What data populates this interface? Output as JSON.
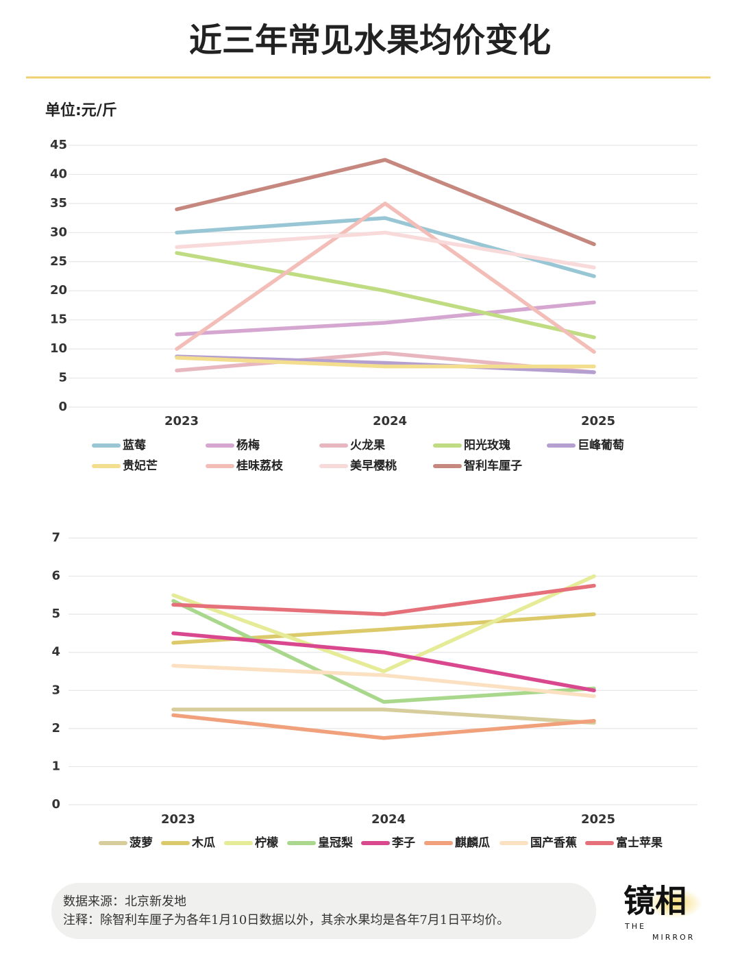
{
  "title": "近三年常见水果均价变化",
  "chart_data": [
    {
      "type": "line",
      "y_label": "单位:元/斤",
      "categories": [
        "2023",
        "2024",
        "2025"
      ],
      "ylim": [
        0,
        45
      ],
      "yticks": [
        0,
        5,
        10,
        15,
        20,
        25,
        30,
        35,
        40,
        45
      ],
      "grid": true,
      "series": [
        {
          "name": "蓝莓",
          "color": "#98c6d5",
          "values": [
            30,
            32.5,
            22.5
          ]
        },
        {
          "name": "杨梅",
          "color": "#d4a6d0",
          "values": [
            12.5,
            14.5,
            18
          ]
        },
        {
          "name": "火龙果",
          "color": "#e8b6bf",
          "values": [
            6.3,
            9.3,
            6
          ]
        },
        {
          "name": "阳光玫瑰",
          "color": "#bfdc82",
          "values": [
            26.5,
            20,
            12
          ]
        },
        {
          "name": "巨峰葡萄",
          "color": "#b59fd0",
          "values": [
            8.7,
            7.6,
            6
          ]
        },
        {
          "name": "贵妃芒",
          "color": "#f3dd8e",
          "values": [
            8.5,
            7,
            7
          ]
        },
        {
          "name": "桂味荔枝",
          "color": "#f3bdb8",
          "values": [
            10,
            35,
            9.5
          ]
        },
        {
          "name": "美早樱桃",
          "color": "#f8dadb",
          "values": [
            27.5,
            30,
            24
          ]
        },
        {
          "name": "智利车厘子",
          "color": "#c5877e",
          "values": [
            34,
            42.5,
            28
          ]
        }
      ]
    },
    {
      "type": "line",
      "categories": [
        "2023",
        "2024",
        "2025"
      ],
      "ylim": [
        0,
        7
      ],
      "yticks": [
        0,
        1,
        2,
        3,
        4,
        5,
        6,
        7
      ],
      "grid": true,
      "series": [
        {
          "name": "菠萝",
          "color": "#d6cc9c",
          "values": [
            2.5,
            2.5,
            2.15
          ]
        },
        {
          "name": "木瓜",
          "color": "#dcc96a",
          "values": [
            4.25,
            4.6,
            5
          ]
        },
        {
          "name": "柠檬",
          "color": "#e6eb98",
          "values": [
            5.5,
            3.5,
            6
          ]
        },
        {
          "name": "皇冠梨",
          "color": "#a9d78b",
          "values": [
            5.35,
            2.7,
            3.05
          ]
        },
        {
          "name": "李子",
          "color": "#d9478f",
          "values": [
            4.5,
            4,
            3
          ]
        },
        {
          "name": "麒麟瓜",
          "color": "#f0a07a",
          "values": [
            2.35,
            1.75,
            2.2
          ]
        },
        {
          "name": "国产香蕉",
          "color": "#fbe1c2",
          "values": [
            3.65,
            3.4,
            2.85
          ]
        },
        {
          "name": "富士苹果",
          "color": "#e5707a",
          "values": [
            5.25,
            5,
            5.75
          ]
        }
      ]
    }
  ],
  "footer": {
    "source": "数据来源：北京新发地",
    "note": "注释：除智利车厘子为各年1月10日数据以外，其余水果均是各年7月1日平均价。"
  },
  "logo": {
    "name": "镜相",
    "the": "THE",
    "mirror": "MIRROR"
  }
}
